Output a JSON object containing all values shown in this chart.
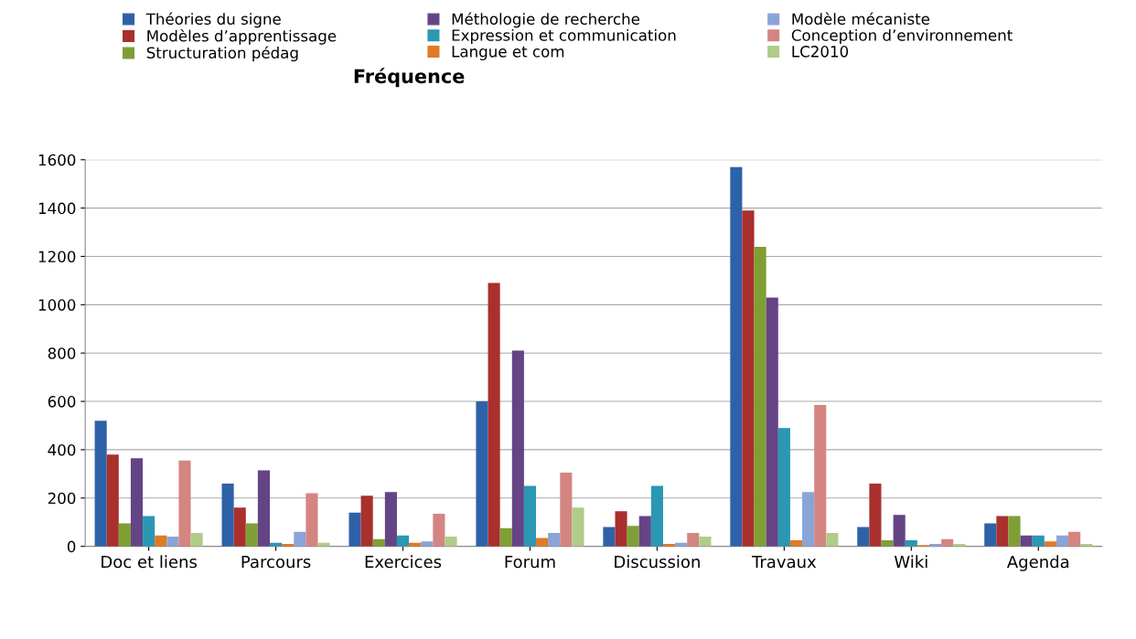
{
  "chart_data": {
    "type": "bar",
    "title": "Fréquence",
    "categories": [
      "Doc et liens",
      "Parcours",
      "Exercices",
      "Forum",
      "Discussion",
      "Travaux",
      "Wiki",
      "Agenda"
    ],
    "series": [
      {
        "name": "Théories du signe",
        "color": "#2e62a8",
        "values": [
          520,
          260,
          140,
          600,
          80,
          1570,
          80,
          95
        ]
      },
      {
        "name": "Modèles d’apprentissage",
        "color": "#a9302d",
        "values": [
          380,
          160,
          210,
          1090,
          145,
          1390,
          260,
          125
        ]
      },
      {
        "name": "Structuration pédag",
        "color": "#7f9f35",
        "values": [
          95,
          95,
          30,
          75,
          85,
          1240,
          25,
          125
        ]
      },
      {
        "name": "Méthologie de recherche",
        "color": "#654486",
        "values": [
          365,
          315,
          225,
          810,
          125,
          1030,
          130,
          45
        ]
      },
      {
        "name": "Expression et communication",
        "color": "#2a97b3",
        "values": [
          125,
          15,
          45,
          250,
          250,
          490,
          25,
          45
        ]
      },
      {
        "name": "Langue et com",
        "color": "#e07a24",
        "values": [
          45,
          10,
          15,
          35,
          10,
          25,
          5,
          20
        ]
      },
      {
        "name": "Modèle mécaniste",
        "color": "#8aa4d6",
        "values": [
          40,
          60,
          20,
          55,
          15,
          225,
          10,
          45
        ]
      },
      {
        "name": "Conception d’environnement",
        "color": "#d48582",
        "values": [
          355,
          220,
          135,
          305,
          55,
          585,
          30,
          60
        ]
      },
      {
        "name": "LC2010",
        "color": "#b0cc88",
        "values": [
          55,
          15,
          40,
          160,
          40,
          55,
          10,
          10
        ]
      }
    ],
    "ylim": [
      0,
      1600
    ],
    "yticks": [
      0,
      200,
      400,
      600,
      800,
      1000,
      1200,
      1400,
      1600
    ],
    "grid": "y",
    "legend": "top"
  }
}
